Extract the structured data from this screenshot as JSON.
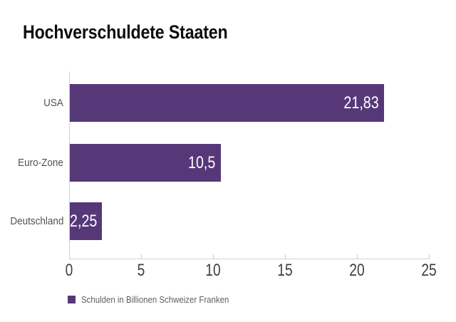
{
  "chart_data": {
    "type": "bar",
    "orientation": "horizontal",
    "title": "Hochverschuldete Staaten",
    "categories": [
      "USA",
      "Euro-Zone",
      "Deutschland"
    ],
    "values": [
      21.83,
      10.5,
      2.25
    ],
    "value_labels": [
      "21,83",
      "10,5",
      "2,25"
    ],
    "x_ticks": [
      "0",
      "5",
      "10",
      "15",
      "20",
      "25"
    ],
    "xlim": [
      0,
      25
    ],
    "xlabel": "",
    "ylabel": "",
    "grid": false,
    "legend_position": "bottom-left",
    "legend_label": "Schulden in Billionen Schweizer Franken",
    "bar_color": "#563879",
    "value_text_color": "#ffffff",
    "axis_color": "#d2d2d2"
  }
}
